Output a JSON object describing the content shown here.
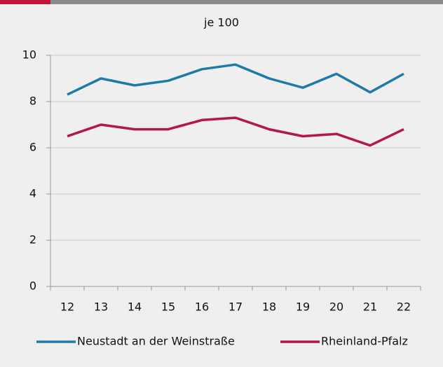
{
  "chart_data": {
    "type": "line",
    "title": "je 100",
    "categories": [
      "12",
      "13",
      "14",
      "15",
      "16",
      "17",
      "18",
      "19",
      "20",
      "21",
      "22"
    ],
    "series": [
      {
        "name": "Neustadt an der Weinstraße",
        "color": "#1f7aa8",
        "values": [
          8.3,
          9.0,
          8.7,
          8.9,
          9.4,
          9.6,
          9.0,
          8.6,
          9.2,
          8.4,
          9.2
        ]
      },
      {
        "name": "Rheinland-Pfalz",
        "color": "#b5174a",
        "values": [
          6.5,
          7.0,
          6.8,
          6.8,
          7.2,
          7.3,
          6.8,
          6.5,
          6.6,
          6.1,
          6.8
        ]
      }
    ],
    "ylim": [
      0,
      10
    ],
    "yticks": [
      0,
      2,
      4,
      6,
      8,
      10
    ],
    "grid": true
  }
}
